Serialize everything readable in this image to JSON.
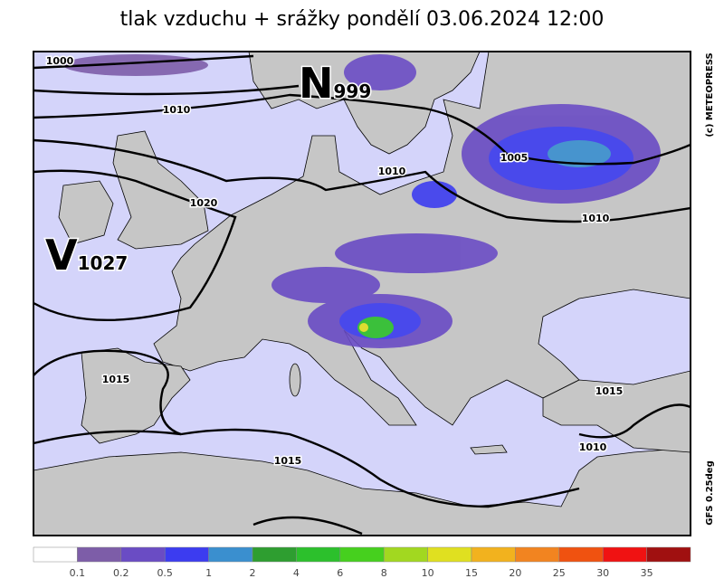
{
  "title": "tlak vzduchu + srážky pondělí 03.06.2024 12:00",
  "credit": "(c) METEOPRESS",
  "model": "GFS 0.25deg",
  "pressure_centers": [
    {
      "letter": "N",
      "value": 999
    },
    {
      "letter": "V",
      "value": 1027
    }
  ],
  "isobar_labels": [
    1000,
    1010,
    1020,
    1010,
    1005,
    1010,
    1015,
    1015,
    1015,
    1010
  ],
  "legend": {
    "colors": [
      "#ffffff",
      "#7d5da8",
      "#6a4cc4",
      "#3c3cf0",
      "#3a8fcf",
      "#2e9e30",
      "#2cc02c",
      "#46d01e",
      "#a2d820",
      "#e0e020",
      "#f2b21e",
      "#f28420",
      "#f05210",
      "#f01212",
      "#a01010"
    ],
    "labels": [
      0.1,
      0.2,
      0.5,
      1,
      2,
      4,
      6,
      8,
      10,
      15,
      20,
      25,
      30,
      35
    ]
  }
}
